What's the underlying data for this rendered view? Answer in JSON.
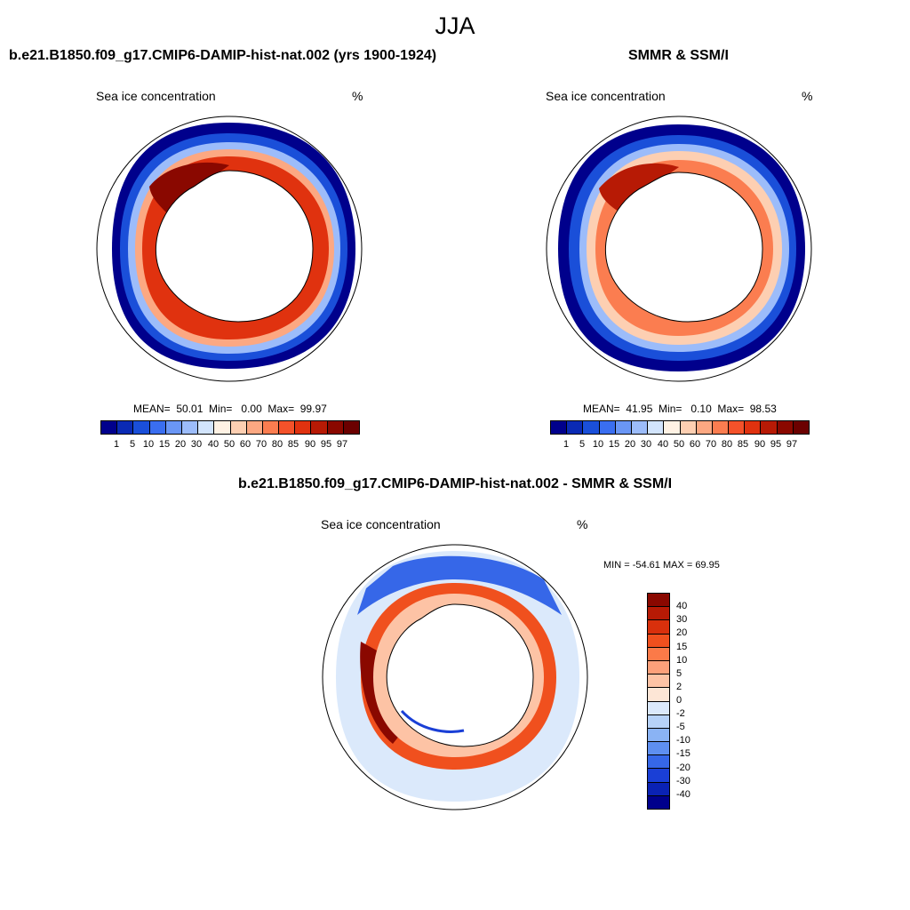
{
  "season": "JJA",
  "panels": [
    {
      "title": "b.e21.B1850.f09_g17.CMIP6-DAMIP-hist-nat.002 (yrs 1900-1924)",
      "left_label": "Sea ice concentration",
      "right_label": "%",
      "stats": "MEAN=  50.01  Min=   0.00  Max=  99.97"
    },
    {
      "title": "SMMR & SSM/I",
      "left_label": "Sea ice concentration",
      "right_label": "%",
      "stats": "MEAN=  41.95  Min=   0.10  Max=  98.53"
    }
  ],
  "colorbar": {
    "labels": [
      "1",
      "5",
      "10",
      "15",
      "20",
      "30",
      "40",
      "50",
      "60",
      "70",
      "80",
      "85",
      "90",
      "95",
      "97"
    ],
    "colors": [
      "#00008c",
      "#0a2ab4",
      "#1a4fd9",
      "#3a6ef0",
      "#6a96f5",
      "#9cbcfa",
      "#d2e4fc",
      "#fff2e4",
      "#fdcfb2",
      "#fca882",
      "#fb7d50",
      "#f4522a",
      "#e0320f",
      "#b71a05",
      "#8a0800"
    ]
  },
  "diff_panel": {
    "title": "b.e21.B1850.f09_g17.CMIP6-DAMIP-hist-nat.002 - SMMR & SSM/I",
    "left_label": "Sea ice concentration",
    "right_label": "%",
    "minmax": "MIN = -54.61 MAX =  69.95"
  },
  "diff_colorbar": {
    "labels": [
      "40",
      "30",
      "20",
      "15",
      "10",
      "5",
      "2",
      "0",
      "-2",
      "-5",
      "-10",
      "-15",
      "-20",
      "-30",
      "-40"
    ],
    "colors": [
      "#8a0800",
      "#b71a05",
      "#d9300c",
      "#f0501e",
      "#fb7a48",
      "#fca07a",
      "#fdc3a5",
      "#fde6d6",
      "#dbe9fb",
      "#b6d2f8",
      "#8ab3f4",
      "#5e8ff0",
      "#3667e8",
      "#1a3fd6",
      "#0a22b4",
      "#00008c"
    ]
  }
}
